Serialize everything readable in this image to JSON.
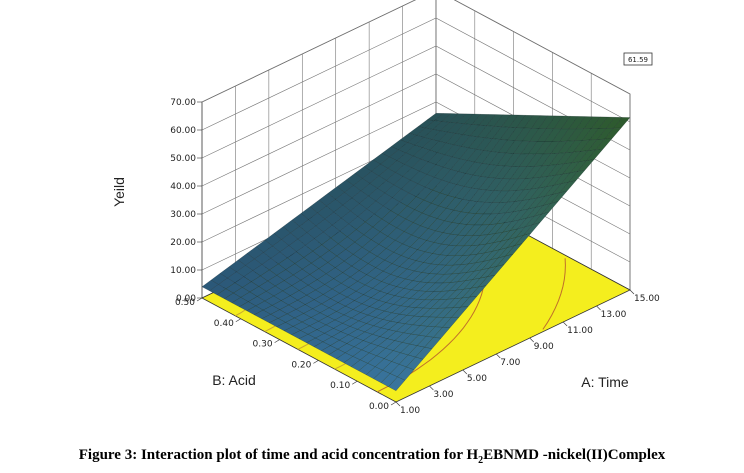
{
  "chart_data": {
    "type": "surface3d",
    "zlabel": "Yeild",
    "xlabel": "A: Time",
    "ylabel": "B: Acid",
    "x_ticks": [
      "1.00",
      "3.00",
      "5.00",
      "7.00",
      "9.00",
      "11.00",
      "13.00",
      "15.00"
    ],
    "y_ticks": [
      "0.00",
      "0.10",
      "0.20",
      "0.30",
      "0.40",
      "0.50"
    ],
    "z_ticks": [
      "0.00",
      "10.00",
      "20.00",
      "30.00",
      "40.00",
      "50.00",
      "60.00",
      "70.00"
    ],
    "xlim": [
      1,
      15
    ],
    "ylim": [
      0,
      0.5
    ],
    "zlim": [
      0,
      70
    ],
    "max_label": "61.59",
    "corner_values": {
      "x1_y0": 4.0,
      "x15_y0": 61.59,
      "x15_y05": 26.0,
      "x1_y05": 4.0
    },
    "surface_color_low": "#3a77a8",
    "surface_color_high": "#2e5a2a",
    "floor_color": "#f4ee1e",
    "contour_color": "#c9a830"
  },
  "caption": {
    "prefix": "Figure 3: Interaction plot of time and acid concentration for H",
    "subscript": "2",
    "suffix": "EBNMD -nickel(II)Complex"
  }
}
